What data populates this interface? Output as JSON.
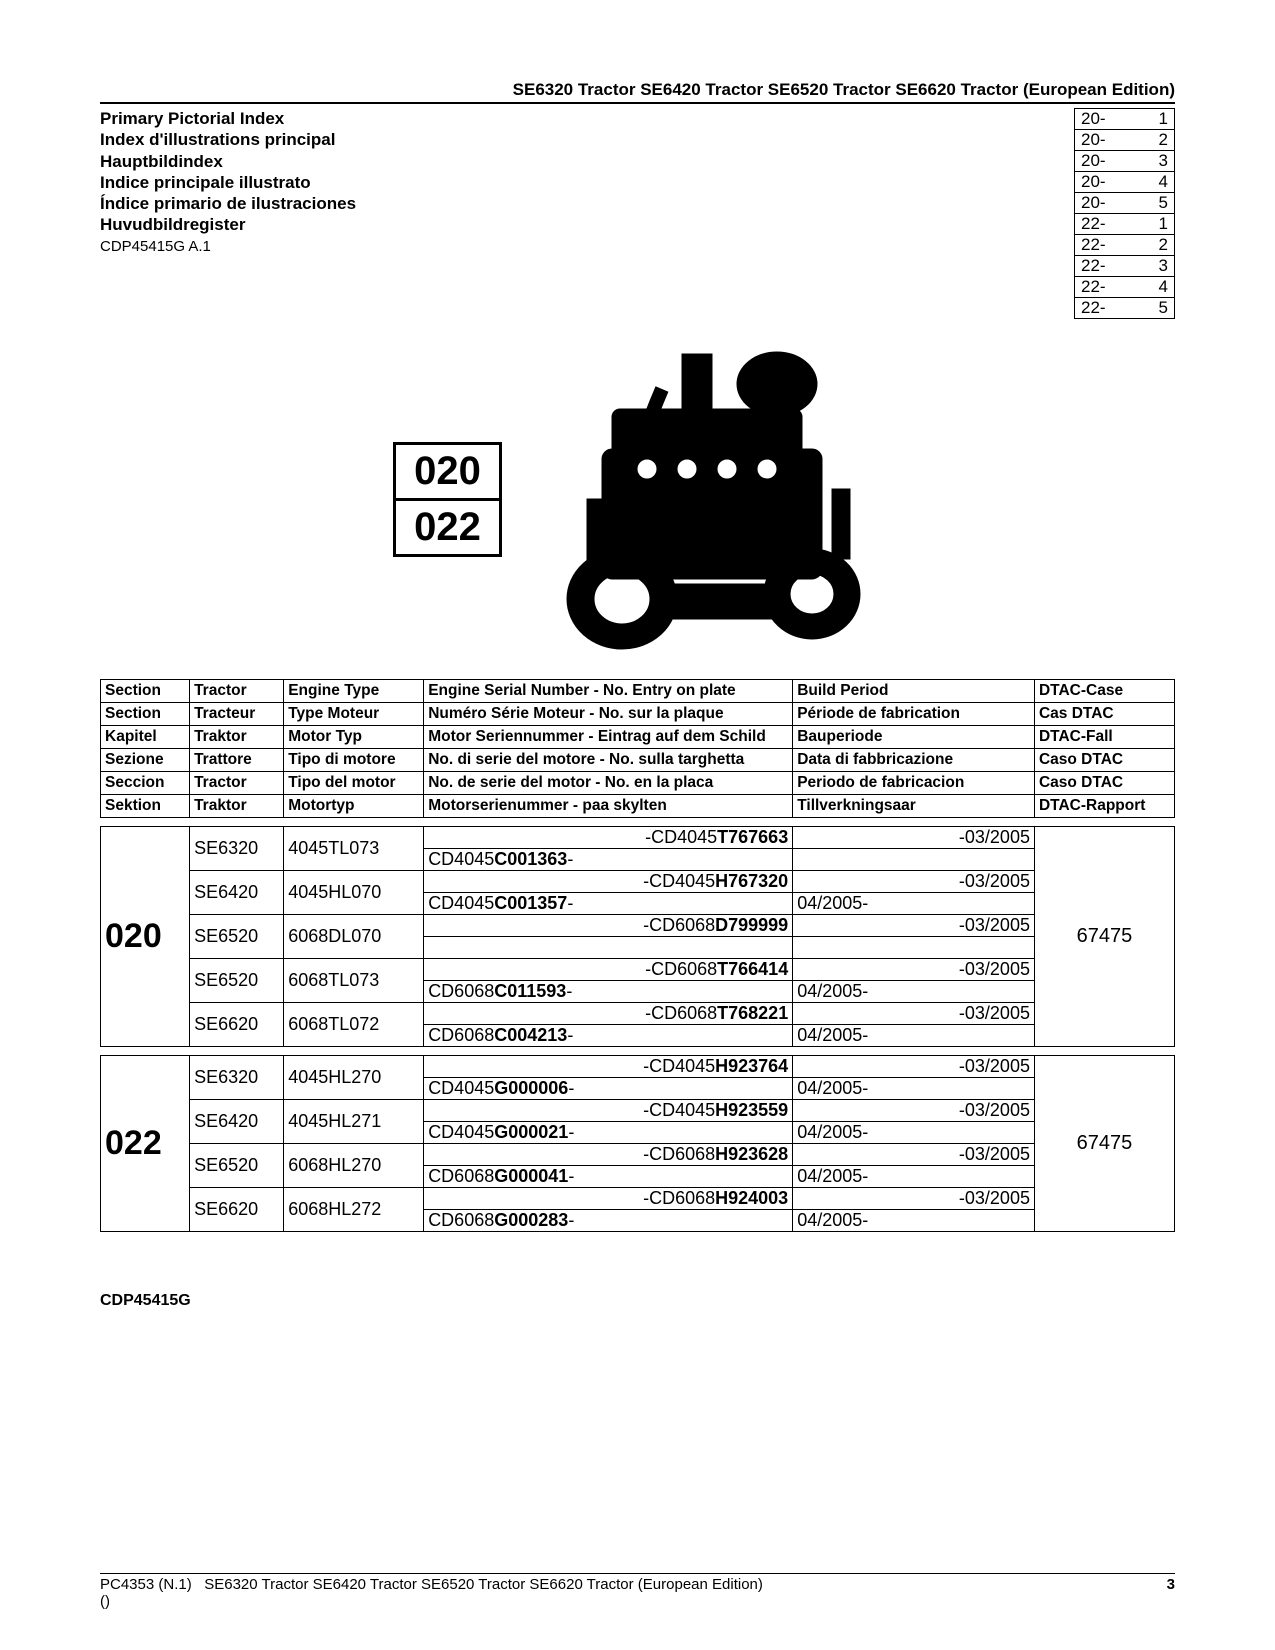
{
  "header": "SE6320 Tractor SE6420 Tractor SE6520 Tractor SE6620 Tractor (European Edition)",
  "index_titles": [
    "Primary Pictorial Index",
    "Index d'illustrations principal",
    "Hauptbildindex",
    "Indice principale illustrato",
    "Índice primario de ilustraciones",
    "Huvudbildregister"
  ],
  "doc_code": "CDP45415G A.1",
  "ref_rows": [
    [
      "20-",
      "1"
    ],
    [
      "20-",
      "2"
    ],
    [
      "20-",
      "3"
    ],
    [
      "20-",
      "4"
    ],
    [
      "20-",
      "5"
    ],
    [
      "22-",
      "1"
    ],
    [
      "22-",
      "2"
    ],
    [
      "22-",
      "3"
    ],
    [
      "22-",
      "4"
    ],
    [
      "22-",
      "5"
    ]
  ],
  "section_labels": [
    "020",
    "022"
  ],
  "header_table": [
    [
      "Section",
      "Tractor",
      "Engine Type",
      "Engine Serial Number - No. Entry on plate",
      "Build Period",
      "DTAC-Case"
    ],
    [
      "Section",
      "Tracteur",
      "Type Moteur",
      "Numéro Série Moteur - No. sur la plaque",
      "Période de fabrication",
      "Cas DTAC"
    ],
    [
      "Kapitel",
      "Traktor",
      "Motor Typ",
      "Motor Seriennummer - Eintrag auf dem Schild",
      "Bauperiode",
      "DTAC-Fall"
    ],
    [
      "Sezione",
      "Trattore",
      "Tipo di motore",
      "No. di serie del motore - No. sulla targhetta",
      "Data di fabbricazione",
      "Caso DTAC"
    ],
    [
      "Seccion",
      "Tractor",
      "Tipo del motor",
      "No. de serie del motor - No. en la placa",
      "Periodo de fabricacion",
      "Caso DTAC"
    ],
    [
      "Sektion",
      "Traktor",
      "Motortyp",
      "Motorserienummer - paa skylten",
      "Tillverkningsaar",
      "DTAC-Rapport"
    ]
  ],
  "col_widths": [
    "70px",
    "74px",
    "110px",
    "290px",
    "190px",
    "110px"
  ],
  "sections": [
    {
      "id": "020",
      "dtac": "67475",
      "rows": [
        {
          "tractor": "SE6320",
          "engine": "4045TL073",
          "s1_pre": "-CD4045",
          "s1_b": "T767663",
          "s1_post": "",
          "s2_pre": "CD4045",
          "s2_b": "C001363",
          "s2_post": "-",
          "bp1": "-03/2005",
          "bp2": ""
        },
        {
          "tractor": "SE6420",
          "engine": "4045HL070",
          "s1_pre": "-CD4045",
          "s1_b": "H767320",
          "s1_post": "",
          "s2_pre": "CD4045",
          "s2_b": "C001357",
          "s2_post": "-",
          "bp1": "-03/2005",
          "bp2": "04/2005-"
        },
        {
          "tractor": "SE6520",
          "engine": "6068DL070",
          "s1_pre": "-CD6068",
          "s1_b": "D799999",
          "s1_post": "",
          "s2_pre": "",
          "s2_b": "",
          "s2_post": "",
          "bp1": "-03/2005",
          "bp2": ""
        },
        {
          "tractor": "SE6520",
          "engine": "6068TL073",
          "s1_pre": "-CD6068",
          "s1_b": "T766414",
          "s1_post": "",
          "s2_pre": "CD6068",
          "s2_b": "C011593",
          "s2_post": "-",
          "bp1": "-03/2005",
          "bp2": "04/2005-"
        },
        {
          "tractor": "SE6620",
          "engine": "6068TL072",
          "s1_pre": "-CD6068",
          "s1_b": "T768221",
          "s1_post": "",
          "s2_pre": "CD6068",
          "s2_b": "C004213",
          "s2_post": "-",
          "bp1": "-03/2005",
          "bp2": "04/2005-"
        }
      ]
    },
    {
      "id": "022",
      "dtac": "67475",
      "rows": [
        {
          "tractor": "SE6320",
          "engine": "4045HL270",
          "s1_pre": "-CD4045",
          "s1_b": "H923764",
          "s1_post": "",
          "s2_pre": "CD4045",
          "s2_b": "G000006",
          "s2_post": "-",
          "bp1": "-03/2005",
          "bp2": "04/2005-"
        },
        {
          "tractor": "SE6420",
          "engine": "4045HL271",
          "s1_pre": "-CD4045",
          "s1_b": "H923559",
          "s1_post": "",
          "s2_pre": "CD4045",
          "s2_b": "G000021",
          "s2_post": "-",
          "bp1": "-03/2005",
          "bp2": "04/2005-"
        },
        {
          "tractor": "SE6520",
          "engine": "6068HL270",
          "s1_pre": "-CD6068",
          "s1_b": "H923628",
          "s1_post": "",
          "s2_pre": "CD6068",
          "s2_b": "G000041",
          "s2_post": "-",
          "bp1": "-03/2005",
          "bp2": "04/2005-"
        },
        {
          "tractor": "SE6620",
          "engine": "6068HL272",
          "s1_pre": "-CD6068",
          "s1_b": "H924003",
          "s1_post": "",
          "s2_pre": "CD6068",
          "s2_b": "G000283",
          "s2_post": "-",
          "bp1": "-03/2005",
          "bp2": "04/2005-"
        }
      ]
    }
  ],
  "bottom_code": "CDP45415G",
  "footer_left_1": "PC4353   (N.1)",
  "footer_left_2": "SE6320 Tractor SE6420 Tractor SE6520 Tractor SE6620 Tractor (European Edition)",
  "footer_left_3": "()",
  "footer_page": "3"
}
